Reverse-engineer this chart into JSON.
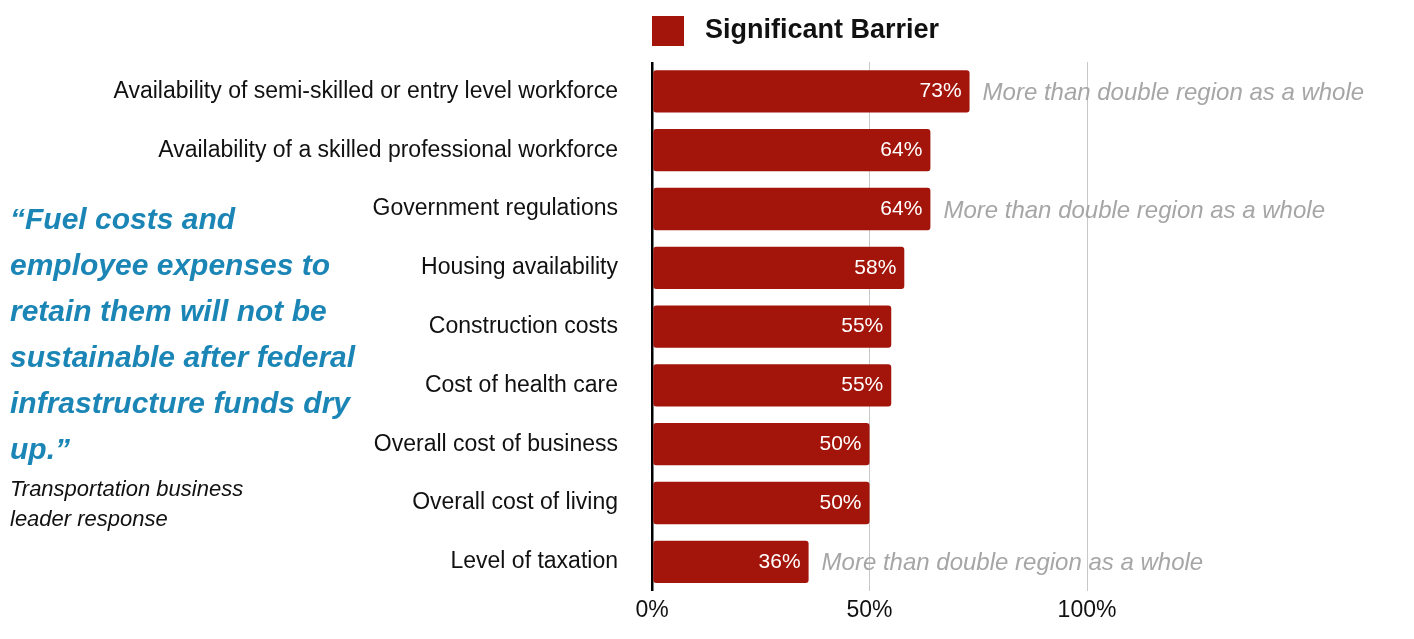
{
  "chart_data": {
    "type": "bar",
    "orientation": "horizontal",
    "categories": [
      "Availability of semi-skilled or entry level workforce",
      "Availability of a skilled professional workforce",
      "Government regulations",
      "Housing availability",
      "Construction costs",
      "Cost of health care",
      "Overall cost of business",
      "Overall cost of living",
      "Level of taxation"
    ],
    "series": [
      {
        "name": "Significant Barrier",
        "color": "#a3150a",
        "values": [
          73,
          64,
          64,
          58,
          55,
          55,
          50,
          50,
          36
        ],
        "value_labels": [
          "73%",
          "64%",
          "64%",
          "58%",
          "55%",
          "55%",
          "50%",
          "50%",
          "36%"
        ]
      }
    ],
    "xlim": [
      0,
      100
    ],
    "xticks": [
      {
        "value": 0,
        "label": "0%"
      },
      {
        "value": 50,
        "label": "50%"
      },
      {
        "value": 100,
        "label": "100%"
      }
    ],
    "grid": "x",
    "legend": "top",
    "annotations": [
      {
        "text": "More than double region as a whole",
        "x": 73,
        "y": "Availability of semi-skilled or entry level workforce"
      },
      {
        "text": "More than double region as a whole",
        "x": 64,
        "y": "Government regulations"
      },
      {
        "text": "More than double region as a whole",
        "x": 36,
        "y": "Level of taxation"
      },
      "“Fuel costs and employee expenses to retain them will not be sustainable after federal infrastructure funds dry up.”",
      "Transportation business leader response"
    ]
  }
}
